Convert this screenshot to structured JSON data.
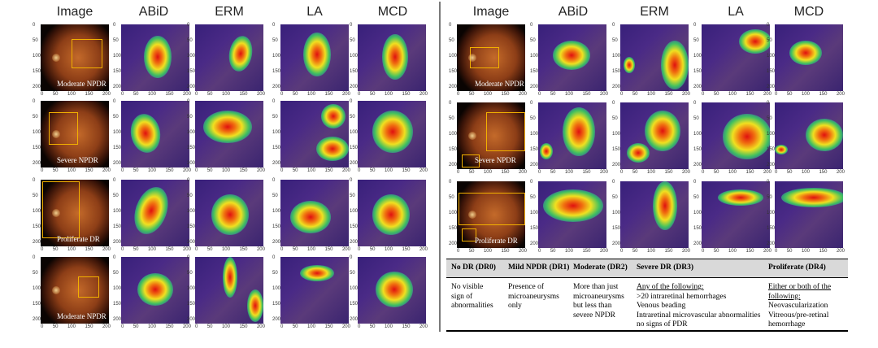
{
  "headers": [
    "Image",
    "ABiD",
    "ERM",
    "LA",
    "MCD"
  ],
  "overlays": [
    "Moderate NPDR",
    "Severe NPDR",
    "Proliferate DR",
    "Moderate NPDR"
  ],
  "x_ticks": [
    "0",
    "50",
    "100",
    "150",
    "200"
  ],
  "y_ticks": [
    "0",
    "50",
    "100",
    "150",
    "200"
  ],
  "table": {
    "columns": [
      "No DR (DR0)",
      "Mild NPDR (DR1)",
      "Moderate (DR2)",
      "Severe DR (DR3)",
      "Proliferate (DR4)"
    ],
    "dr0": [
      "No visible",
      "sign of",
      "abnormalities"
    ],
    "dr1": [
      "Presence of",
      "microaneurysms",
      "only"
    ],
    "dr2": [
      "More than just",
      "microaneurysms",
      "but less than",
      "severe NPDR"
    ],
    "dr3_title": "Any of the following:",
    "dr3": [
      ">20 intraretinal hemorrhages",
      "Venous beading",
      "Intraretinal microvascular abnormalities",
      "no signs of PDR"
    ],
    "dr4_title": [
      "Either or both of the",
      "following:"
    ],
    "dr4": [
      "Neovascularization",
      "Vitreous/pre-retinal",
      "hemorrhage"
    ]
  }
}
